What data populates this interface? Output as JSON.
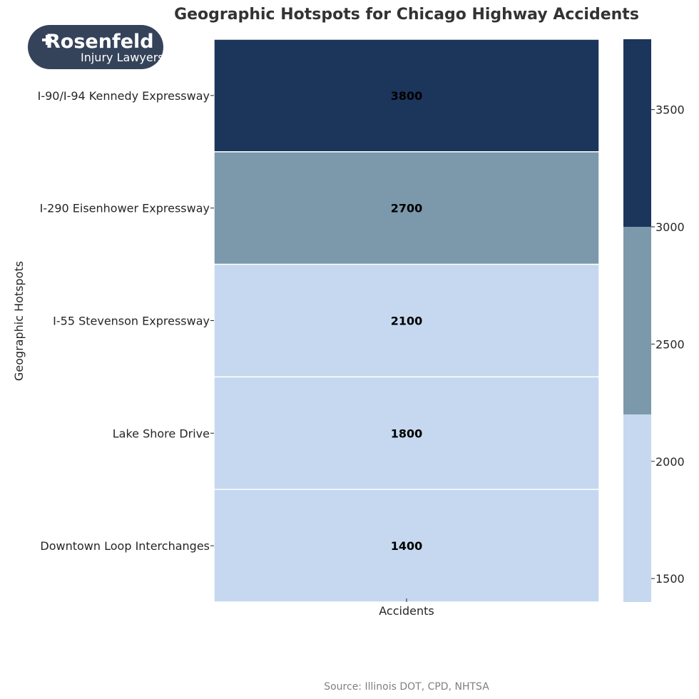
{
  "chart_data": {
    "type": "heatmap",
    "title": "Geographic Hotspots for Chicago Highway Accidents",
    "ylabel": "Geographic Hotspots",
    "xlabel": "",
    "columns": [
      "Accidents"
    ],
    "rows": [
      {
        "label": "I-90/I-94 Kennedy Expressway",
        "value": 3800
      },
      {
        "label": "I-290 Eisenhower Expressway",
        "value": 2700
      },
      {
        "label": "I-55 Stevenson Expressway",
        "value": 2100
      },
      {
        "label": "Lake Shore Drive",
        "value": 1800
      },
      {
        "label": "Downtown Loop Interchanges",
        "value": 1400
      }
    ],
    "colorbar": {
      "range": [
        1400,
        3800
      ],
      "ticks": [
        "1500",
        "2000",
        "2500",
        "3000",
        "3500"
      ],
      "bins": [
        {
          "from": 1400,
          "to": 2200,
          "color": "#c5d8ef"
        },
        {
          "from": 2200,
          "to": 3000,
          "color": "#7b99ab"
        },
        {
          "from": 3000,
          "to": 3800,
          "color": "#1c355b"
        }
      ]
    },
    "source": "Source: Illinois DOT, CPD, NHTSA"
  },
  "logo": {
    "name": "Rosenfeld",
    "tagline": "Injury Lawyers",
    "bg_color": "#35435a",
    "text_color": "#ffffff"
  }
}
